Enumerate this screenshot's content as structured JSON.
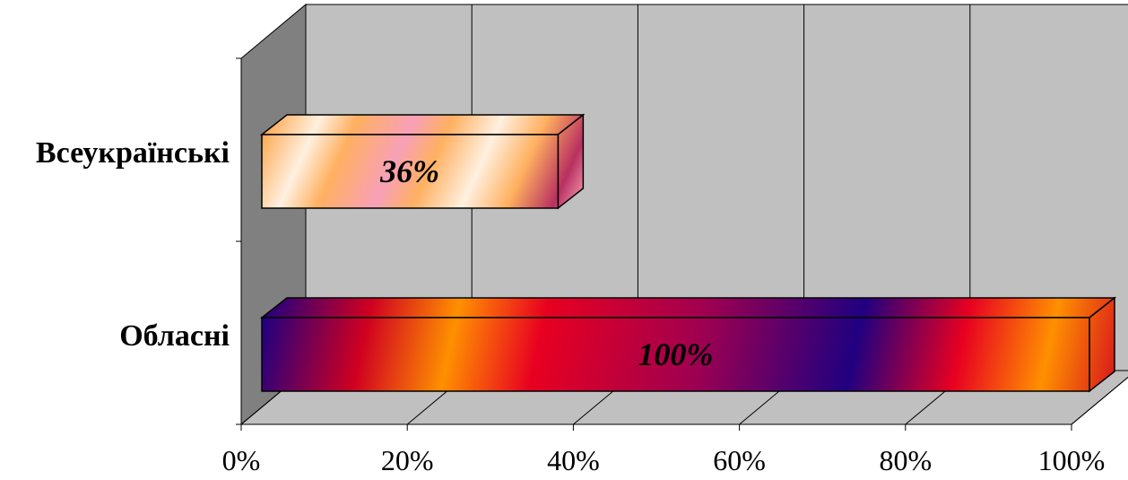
{
  "chart_data": {
    "type": "bar",
    "orientation": "horizontal",
    "three_d": true,
    "categories": [
      "Всеукраїнські",
      "Обласні"
    ],
    "values": [
      36,
      100
    ],
    "data_labels": [
      "36%",
      "100%"
    ],
    "xlim": [
      0,
      100
    ],
    "x_ticks": [
      0,
      20,
      40,
      60,
      80,
      100
    ],
    "x_tick_labels": [
      "0%",
      "20%",
      "40%",
      "60%",
      "80%",
      "100%"
    ],
    "title": "",
    "xlabel": "",
    "ylabel": "",
    "grid": true,
    "legend": "none",
    "colors": {
      "wall": "#c0c0c0",
      "side_wall": "#808080",
      "floor": "#c0c0c0",
      "bar_1": [
        "#ffb060",
        "#f8d8a8",
        "#b83060",
        "#f8a0b8"
      ],
      "bar_2": [
        "#200080",
        "#d00020",
        "#ff9000",
        "#e80020"
      ]
    }
  }
}
